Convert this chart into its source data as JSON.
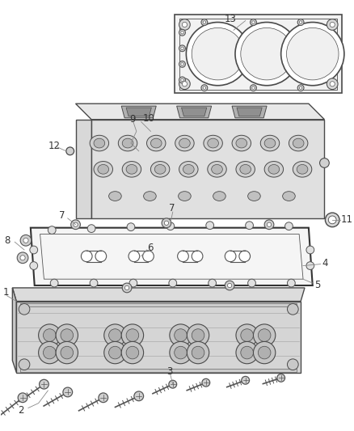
{
  "background_color": "#ffffff",
  "line_color": "#4a4a4a",
  "label_color": "#333333",
  "fig_width": 4.38,
  "fig_height": 5.33,
  "dpi": 100
}
